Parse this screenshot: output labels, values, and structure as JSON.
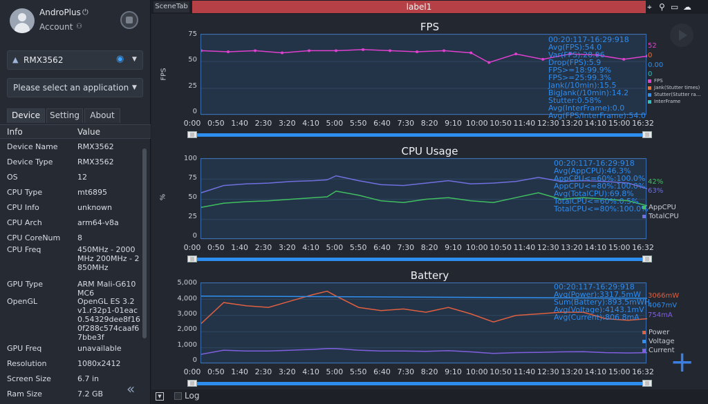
{
  "user": {
    "name": "AndroPlus",
    "account_label": "Account"
  },
  "device_select": {
    "value": "RMX3562"
  },
  "app_select": {
    "placeholder": "Please select an application"
  },
  "tabs": [
    "Device",
    "Setting",
    "About"
  ],
  "info_table": {
    "headers": [
      "Info",
      "Value"
    ],
    "rows": [
      {
        "k": "Device Name",
        "v": "RMX3562"
      },
      {
        "k": "Device Type",
        "v": "RMX3562"
      },
      {
        "k": "OS",
        "v": "12"
      },
      {
        "k": "CPU Type",
        "v": "mt6895"
      },
      {
        "k": "CPU Info",
        "v": "unknown"
      },
      {
        "k": "CPU Arch",
        "v": "arm64-v8a"
      },
      {
        "k": "CPU CoreNum",
        "v": "8"
      },
      {
        "k": "CPU Freq",
        "v": "450MHz - 2000MHz 200MHz - 2850MHz"
      },
      {
        "k": "GPU Type",
        "v": "ARM Mali-G610 MC6"
      },
      {
        "k": "OpenGL",
        "v": "OpenGL ES 3.2 v1.r32p1-01eac0.54329dee8f160f288c574caaf67bbe3f"
      },
      {
        "k": "GPU Freq",
        "v": "unavailable"
      },
      {
        "k": "Resolution",
        "v": "1080x2412"
      },
      {
        "k": "Screen Size",
        "v": "6.7 in"
      },
      {
        "k": "Ram Size",
        "v": "7.2 GB"
      }
    ]
  },
  "topbar": {
    "scene_tab": "SceneTab",
    "active_label": "label1"
  },
  "bottombar": {
    "log_label": "Log"
  },
  "x_ticks": [
    "0:00",
    "0:50",
    "1:40",
    "2:30",
    "3:20",
    "4:10",
    "5:00",
    "5:50",
    "6:40",
    "7:30",
    "8:20",
    "9:10",
    "10:00",
    "10:50",
    "11:40",
    "12:30",
    "13:20",
    "14:10",
    "15:00",
    "16:32"
  ],
  "colors": {
    "fps": "#e040d0",
    "jank": "#f07030",
    "cpu_app": "#40c060",
    "cpu_total": "#7070e0",
    "power": "#e06040",
    "voltage": "#3090f0",
    "current": "#8060e0",
    "stats": "#2d8cf0"
  },
  "chart_data": [
    {
      "type": "line",
      "title": "FPS",
      "ylabel": "FPS",
      "ylim": [
        0,
        75
      ],
      "yticks": [
        "75",
        "50",
        "25",
        "0"
      ],
      "xlim_seconds": [
        0,
        992
      ],
      "series": [
        {
          "name": "FPS",
          "x": [
            0,
            60,
            120,
            180,
            240,
            300,
            360,
            420,
            480,
            540,
            600,
            640,
            700,
            760,
            820,
            880,
            940,
            992
          ],
          "values": [
            60,
            59,
            60,
            58,
            60,
            60,
            61,
            60,
            59,
            60,
            58,
            49,
            57,
            52,
            57,
            56,
            52,
            55
          ]
        }
      ],
      "legend": [
        "FPS",
        "Jank(Stutter times)",
        "Stutter(Stutter ra...",
        "InterFrame"
      ],
      "current_values": [
        "52",
        "0",
        "0.00",
        "0"
      ],
      "stats": [
        "00:20:117-16:29:918",
        "Avg(FPS):54.0",
        "Var(FPS):28.96",
        "Drop(FPS):5.9",
        "FPS>=18:99.9%",
        "FPS>=25:99.3%",
        "Jank(/10min):15.5",
        "BigJank(/10min):14.2",
        "Stutter:0.58%",
        "Avg(InterFrame):0.0",
        "Avg(FPS/InterFrame):54.0"
      ]
    },
    {
      "type": "line",
      "title": "CPU Usage",
      "ylabel": "%",
      "ylim": [
        0,
        100
      ],
      "yticks": [
        "100",
        "75",
        "50",
        "25",
        "0"
      ],
      "xlim_seconds": [
        0,
        992
      ],
      "series": [
        {
          "name": "AppCPU",
          "x": [
            0,
            50,
            100,
            150,
            200,
            250,
            280,
            300,
            350,
            400,
            450,
            500,
            550,
            600,
            650,
            700,
            750,
            800,
            850,
            900,
            950,
            992
          ],
          "values": [
            40,
            45,
            47,
            48,
            50,
            52,
            53,
            60,
            55,
            48,
            46,
            50,
            52,
            48,
            46,
            52,
            58,
            50,
            52,
            50,
            48,
            42
          ]
        },
        {
          "name": "TotalCPU",
          "x": [
            0,
            50,
            100,
            150,
            200,
            250,
            280,
            300,
            350,
            400,
            450,
            500,
            550,
            600,
            650,
            700,
            750,
            800,
            850,
            900,
            950,
            992
          ],
          "values": [
            58,
            67,
            69,
            70,
            72,
            73,
            74,
            79,
            73,
            68,
            67,
            70,
            73,
            69,
            70,
            72,
            77,
            72,
            73,
            72,
            70,
            63
          ]
        }
      ],
      "legend": [
        "AppCPU",
        "TotalCPU"
      ],
      "current_values": [
        "42%",
        "63%"
      ],
      "stats": [
        "00:20:117-16:29:918",
        "Avg(AppCPU):46.3%",
        "AppCPU<=60%:100.0%",
        "AppCPU<=80%:100.0%",
        "Avg(TotalCPU):69.8%",
        "TotalCPU<=60%:0.5%",
        "TotalCPU<=80%:100.0%"
      ]
    },
    {
      "type": "line",
      "title": "Battery",
      "ylim": [
        0,
        5000
      ],
      "yticks": [
        "5,000",
        "4,000",
        "3,000",
        "2,000",
        "1,000",
        "0"
      ],
      "xlim_seconds": [
        0,
        992
      ],
      "series": [
        {
          "name": "Power",
          "x": [
            0,
            50,
            100,
            150,
            200,
            250,
            280,
            300,
            350,
            400,
            450,
            500,
            550,
            600,
            650,
            700,
            750,
            800,
            850,
            900,
            950,
            992
          ],
          "values": [
            2500,
            3800,
            3600,
            3500,
            3900,
            4300,
            4500,
            4200,
            3500,
            3300,
            3400,
            3200,
            3500,
            3100,
            2600,
            3000,
            3100,
            3200,
            3200,
            2800,
            2700,
            2800
          ]
        },
        {
          "name": "Voltage",
          "x": [
            0,
            992
          ],
          "values": [
            4200,
            4067
          ]
        },
        {
          "name": "Current",
          "x": [
            0,
            50,
            100,
            150,
            200,
            250,
            280,
            300,
            350,
            400,
            450,
            500,
            550,
            600,
            650,
            700,
            750,
            800,
            850,
            900,
            950,
            992
          ],
          "values": [
            600,
            850,
            800,
            800,
            850,
            900,
            950,
            950,
            850,
            800,
            800,
            780,
            820,
            750,
            650,
            700,
            720,
            750,
            760,
            700,
            680,
            700
          ]
        }
      ],
      "legend": [
        "Power",
        "Voltage",
        "Current"
      ],
      "current_values": [
        "3066mW",
        "4067mV",
        "754mA"
      ],
      "stats": [
        "00:20:117-16:29:918",
        "Avg(Power):3317.5mW",
        "Sum(Battery):893.5mWH",
        "Avg(Voltage):4143.1mV",
        "Avg(Current):806.8mA"
      ]
    }
  ]
}
